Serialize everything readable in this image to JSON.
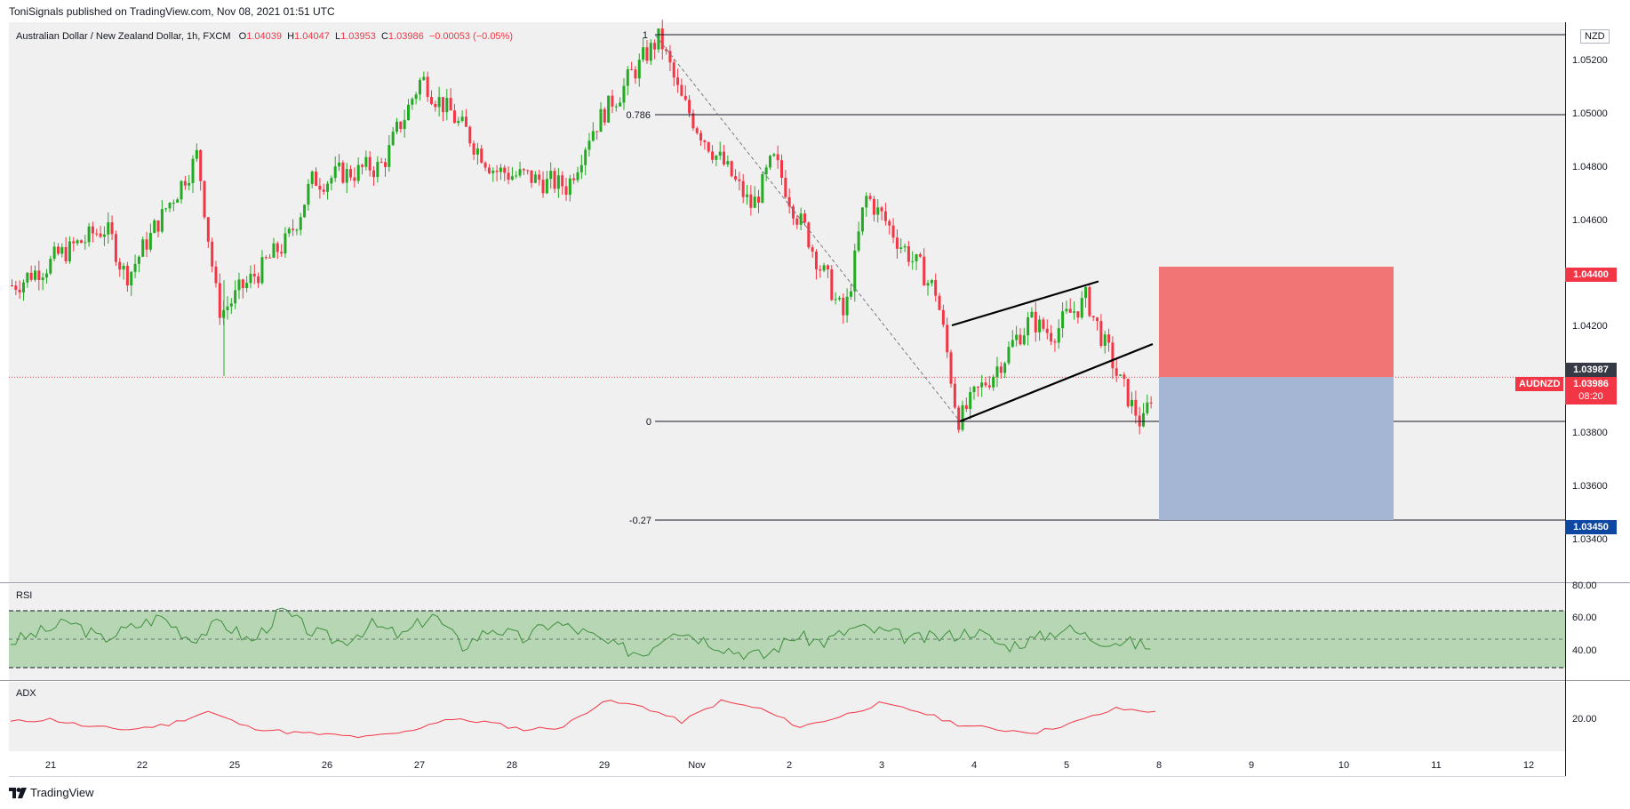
{
  "header": {
    "published": "ToniSignals published on TradingView.com, Nov 08, 2021 01:51 UTC"
  },
  "legend": {
    "symbol": "Australian Dollar / New Zealand Dollar, 1h, FXCM",
    "o_label": "O",
    "o": "1.04039",
    "h_label": "H",
    "h": "1.04047",
    "l_label": "L",
    "l": "1.03953",
    "c_label": "C",
    "c": "1.03986",
    "change": "−0.00053 (−0.05%)"
  },
  "currency": "NZD",
  "price_axis": {
    "ticks": [
      "1.05200",
      "1.05000",
      "1.04800",
      "1.04600",
      "1.04200",
      "1.03800",
      "1.03600",
      "1.03400"
    ],
    "stop_price": "1.04400",
    "last_close": "1.03987",
    "current_price": "1.03986",
    "countdown": "08:20",
    "target_price": "1.03450",
    "symbol_tag": "AUDNZD"
  },
  "fib": {
    "level_1": "1",
    "level_0786": "0.786",
    "level_0": "0",
    "level_neg027": "-0.27"
  },
  "rsi": {
    "label": "RSI",
    "ticks": [
      "80.00",
      "60.00",
      "40.00"
    ]
  },
  "adx": {
    "label": "ADX",
    "ticks": [
      "20.00"
    ]
  },
  "x_axis": {
    "labels": [
      "21",
      "22",
      "25",
      "26",
      "27",
      "28",
      "29",
      "Nov",
      "2",
      "3",
      "4",
      "5",
      "8",
      "9",
      "10",
      "11",
      "12"
    ]
  },
  "footer": {
    "brand": "TradingView"
  },
  "colors": {
    "up": "#089981",
    "up_candle": "#22ab22",
    "down": "#f23645",
    "risk_zone": "#f06e6e",
    "reward_zone": "#a4b6d4",
    "rsi_band": "#b7d6b4",
    "rsi_line": "#3f8f3f",
    "adx_line": "#f23645",
    "target_box": "#0d47a1"
  },
  "chart_data": {
    "type": "candlestick",
    "title": "Australian Dollar / New Zealand Dollar, 1h, FXCM",
    "x_labels": [
      "21",
      "22",
      "25",
      "26",
      "27",
      "28",
      "29",
      "Nov",
      "2",
      "3",
      "4",
      "5",
      "8",
      "9",
      "10",
      "11",
      "12"
    ],
    "ylim": [
      1.0335,
      1.053
    ],
    "price_path": [
      {
        "x": "21",
        "y": 1.0433
      },
      {
        "x": "21",
        "y": 1.0455
      },
      {
        "x": "22",
        "y": 1.0436
      },
      {
        "x": "22",
        "y": 1.0482
      },
      {
        "x": "25",
        "y": 1.0422
      },
      {
        "x": "25",
        "y": 1.0451
      },
      {
        "x": "26",
        "y": 1.0472
      },
      {
        "x": "26",
        "y": 1.0478
      },
      {
        "x": "27",
        "y": 1.0511
      },
      {
        "x": "28",
        "y": 1.0476
      },
      {
        "x": "28",
        "y": 1.047
      },
      {
        "x": "29",
        "y": 1.049
      },
      {
        "x": "29",
        "y": 1.0526
      },
      {
        "x": "Nov",
        "y": 1.0502
      },
      {
        "x": "Nov",
        "y": 1.0462
      },
      {
        "x": "2",
        "y": 1.048
      },
      {
        "x": "2",
        "y": 1.042
      },
      {
        "x": "3",
        "y": 1.0467
      },
      {
        "x": "3",
        "y": 1.043
      },
      {
        "x": "4",
        "y": 1.0382
      },
      {
        "x": "4",
        "y": 1.042
      },
      {
        "x": "5",
        "y": 1.0415
      },
      {
        "x": "5",
        "y": 1.0428
      },
      {
        "x": "5",
        "y": 1.0395
      },
      {
        "x": "8",
        "y": 1.038
      },
      {
        "x": "8",
        "y": 1.03986
      }
    ],
    "fib_levels": [
      {
        "label": "1",
        "price": 1.0527
      },
      {
        "label": "0.786",
        "price": 1.0497
      },
      {
        "label": "0",
        "price": 1.0382
      },
      {
        "label": "-0.27",
        "price": 1.0345
      }
    ],
    "channel": {
      "lower": [
        [
          1.0382
        ],
        [
          1.0411
        ]
      ],
      "upper": [
        [
          1.0418
        ],
        [
          1.0435
        ]
      ]
    },
    "position": {
      "entry": 1.03986,
      "stop": 1.044,
      "target": 1.0345
    },
    "rsi": {
      "values": [
        48,
        55,
        62,
        50,
        58,
        66,
        50,
        62,
        48,
        70,
        55,
        48,
        60,
        52,
        68,
        45,
        58,
        50,
        62,
        55,
        45,
        40,
        58,
        50,
        42,
        38,
        52,
        48,
        58,
        55,
        50,
        52,
        56,
        45,
        50,
        58,
        50,
        48,
        44
      ],
      "levels": [
        70,
        50,
        30
      ]
    },
    "adx": {
      "values": [
        20,
        21,
        18,
        17,
        19,
        24,
        18,
        16,
        15,
        14,
        16,
        21,
        20,
        17,
        18,
        28,
        26,
        20,
        28,
        25,
        18,
        22,
        27,
        24,
        19,
        17,
        16,
        20,
        25,
        24
      ]
    }
  }
}
